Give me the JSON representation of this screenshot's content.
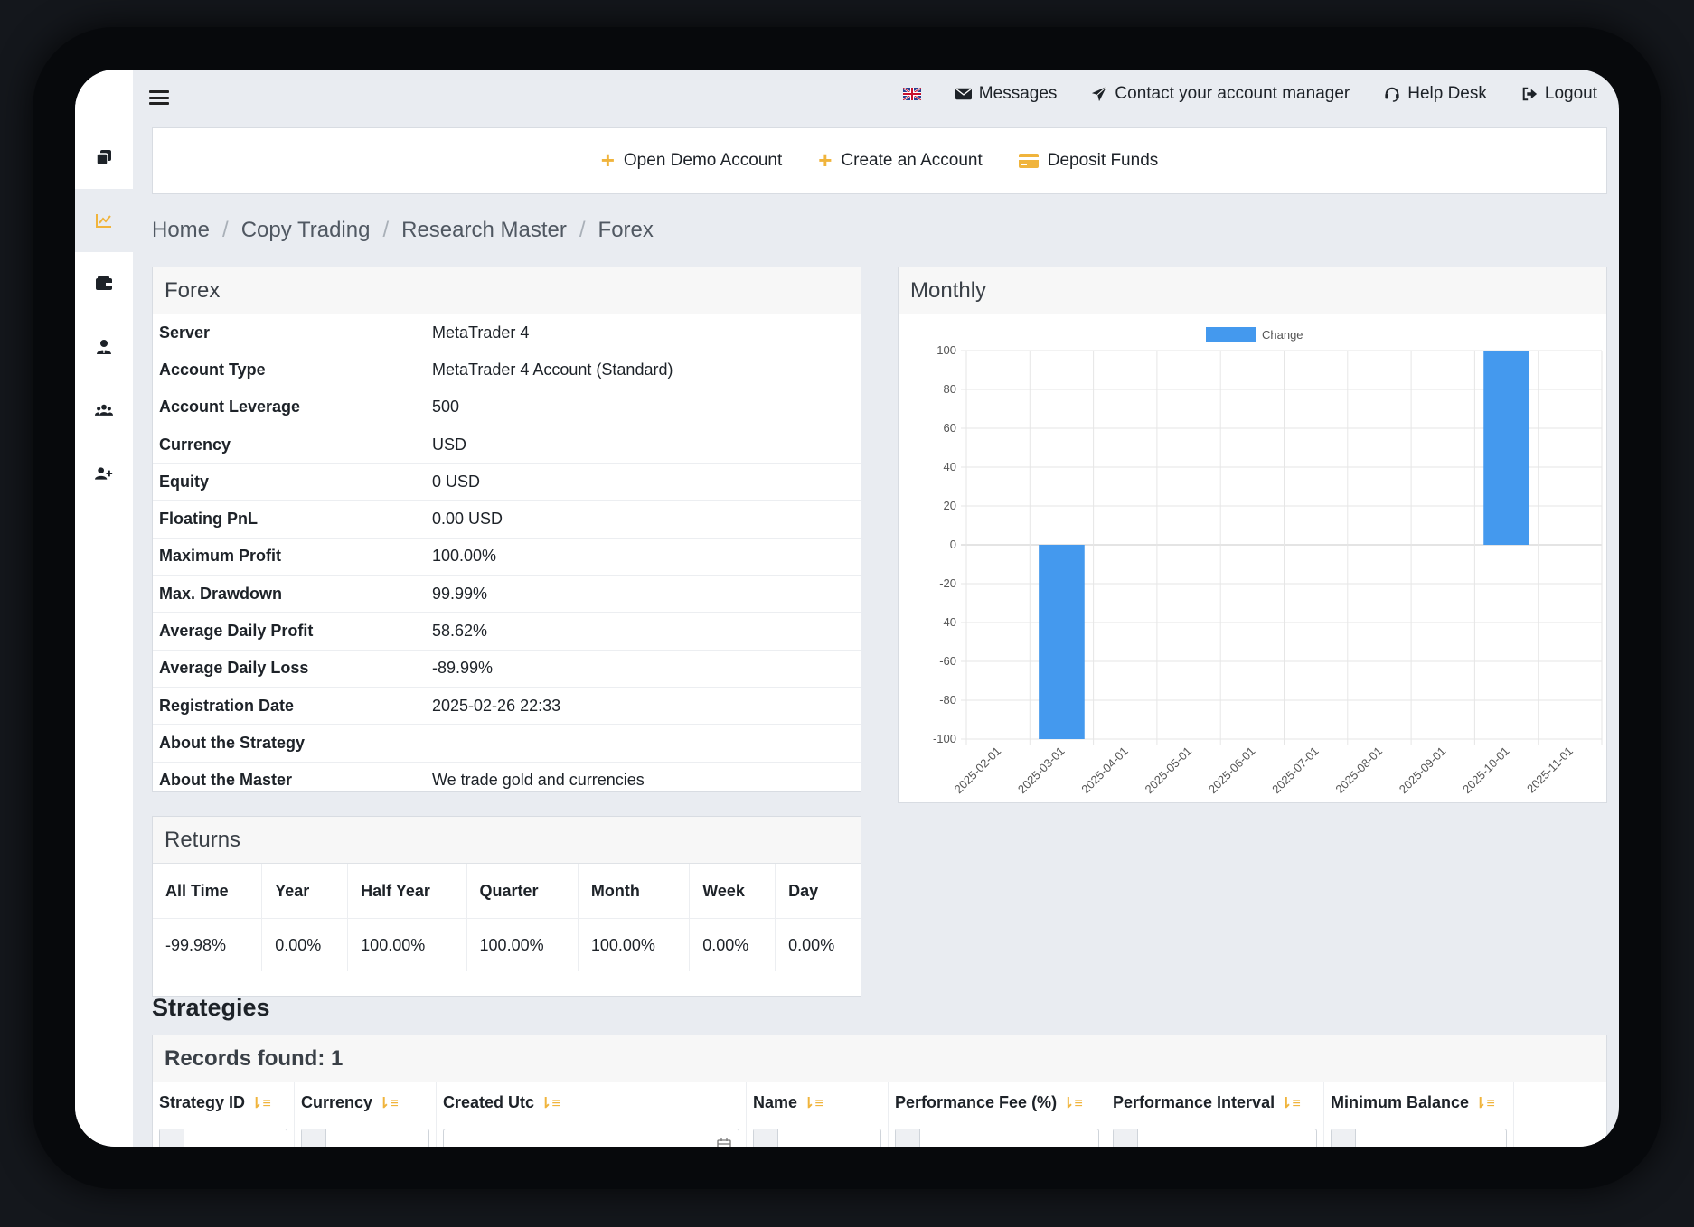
{
  "topbar": {
    "messages": "Messages",
    "contact": "Contact your account manager",
    "help": "Help Desk",
    "logout": "Logout"
  },
  "actions": {
    "open_demo": "Open Demo Account",
    "create_account": "Create an Account",
    "deposit": "Deposit Funds"
  },
  "breadcrumb": [
    "Home",
    "Copy Trading",
    "Research Master",
    "Forex"
  ],
  "forex": {
    "title": "Forex",
    "rows": [
      {
        "k": "Server",
        "v": "MetaTrader 4"
      },
      {
        "k": "Account Type",
        "v": "MetaTrader 4 Account (Standard)"
      },
      {
        "k": "Account Leverage",
        "v": "500"
      },
      {
        "k": "Currency",
        "v": "USD"
      },
      {
        "k": "Equity",
        "v": "0 USD"
      },
      {
        "k": "Floating PnL",
        "v": "0.00 USD"
      },
      {
        "k": "Maximum Profit",
        "v": "100.00%"
      },
      {
        "k": "Max. Drawdown",
        "v": "99.99%"
      },
      {
        "k": "Average Daily Profit",
        "v": "58.62%"
      },
      {
        "k": "Average Daily Loss",
        "v": "-89.99%"
      },
      {
        "k": "Registration Date",
        "v": "2025-02-26 22:33"
      },
      {
        "k": "About the Strategy",
        "v": ""
      },
      {
        "k": "About the Master",
        "v": "We trade gold and currencies"
      }
    ]
  },
  "returns": {
    "title": "Returns",
    "headers": [
      "All Time",
      "Year",
      "Half Year",
      "Quarter",
      "Month",
      "Week",
      "Day"
    ],
    "values": [
      "-99.98%",
      "0.00%",
      "100.00%",
      "100.00%",
      "100.00%",
      "0.00%",
      "0.00%"
    ]
  },
  "monthly": {
    "title": "Monthly"
  },
  "chart_data": {
    "type": "bar",
    "categories": [
      "2025-02-01",
      "2025-03-01",
      "2025-04-01",
      "2025-05-01",
      "2025-06-01",
      "2025-07-01",
      "2025-08-01",
      "2025-09-01",
      "2025-10-01",
      "2025-11-01"
    ],
    "series": [
      {
        "name": "Change",
        "color": "#4499ee",
        "values": [
          0,
          -100,
          0,
          0,
          0,
          0,
          0,
          0,
          100,
          0
        ]
      }
    ],
    "ylim": [
      -100,
      100
    ],
    "yticks": [
      100,
      80,
      60,
      40,
      20,
      0,
      -20,
      -40,
      -60,
      -80,
      -100
    ],
    "legend": "top",
    "grid": true
  },
  "strategies": {
    "title": "Strategies",
    "records": "Records found: 1",
    "columns": [
      "Strategy ID",
      "Currency",
      "Created Utc",
      "Name",
      "Performance Fee (%)",
      "Performance Interval",
      "Minimum Balance"
    ]
  }
}
